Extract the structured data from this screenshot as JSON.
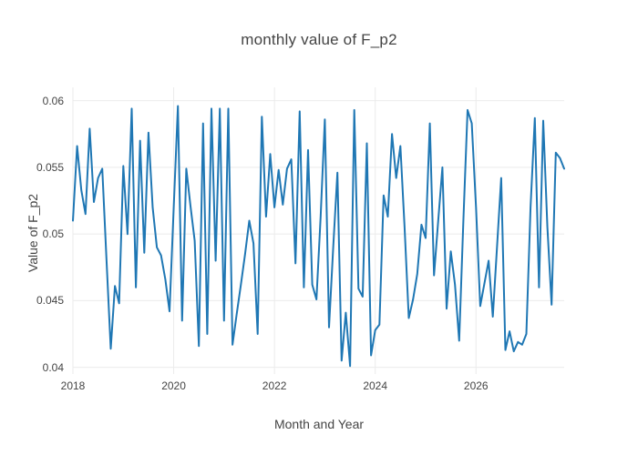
{
  "chart_data": {
    "type": "line",
    "title": "monthly value of F_p2",
    "xlabel": "Month and Year",
    "ylabel": "Value of F_p2",
    "legend": false,
    "grid": true,
    "background": "#ffffff",
    "grid_color": "#ebebeb",
    "ylim": [
      0.0395,
      0.061
    ],
    "x_range": [
      "2018-01",
      "2027-10"
    ],
    "yticks": [
      {
        "value": 0.04,
        "label": "0.04"
      },
      {
        "value": 0.045,
        "label": "0.045"
      },
      {
        "value": 0.05,
        "label": "0.05"
      },
      {
        "value": 0.055,
        "label": "0.055"
      },
      {
        "value": 0.06,
        "label": "0.06"
      }
    ],
    "xticks": [
      {
        "month_index": 0,
        "label": "2018"
      },
      {
        "month_index": 24,
        "label": "2020"
      },
      {
        "month_index": 48,
        "label": "2022"
      },
      {
        "month_index": 72,
        "label": "2024"
      },
      {
        "month_index": 96,
        "label": "2026"
      }
    ],
    "x": [
      "2018-01",
      "2018-02",
      "2018-03",
      "2018-04",
      "2018-05",
      "2018-06",
      "2018-07",
      "2018-08",
      "2018-09",
      "2018-10",
      "2018-11",
      "2018-12",
      "2019-01",
      "2019-02",
      "2019-03",
      "2019-04",
      "2019-05",
      "2019-06",
      "2019-07",
      "2019-08",
      "2019-09",
      "2019-10",
      "2019-11",
      "2019-12",
      "2020-01",
      "2020-02",
      "2020-03",
      "2020-04",
      "2020-05",
      "2020-06",
      "2020-07",
      "2020-08",
      "2020-09",
      "2020-10",
      "2020-11",
      "2020-12",
      "2021-01",
      "2021-02",
      "2021-03",
      "2021-04",
      "2021-05",
      "2021-06",
      "2021-07",
      "2021-08",
      "2021-09",
      "2021-10",
      "2021-11",
      "2021-12",
      "2022-01",
      "2022-02",
      "2022-03",
      "2022-04",
      "2022-05",
      "2022-06",
      "2022-07",
      "2022-08",
      "2022-09",
      "2022-10",
      "2022-11",
      "2022-12",
      "2023-01",
      "2023-02",
      "2023-03",
      "2023-04",
      "2023-05",
      "2023-06",
      "2023-07",
      "2023-08",
      "2023-09",
      "2023-10",
      "2023-11",
      "2023-12",
      "2024-01",
      "2024-02",
      "2024-03",
      "2024-04",
      "2024-05",
      "2024-06",
      "2024-07",
      "2024-08",
      "2024-09",
      "2024-10",
      "2024-11",
      "2024-12",
      "2025-01",
      "2025-02",
      "2025-03",
      "2025-04",
      "2025-05",
      "2025-06",
      "2025-07",
      "2025-08",
      "2025-09",
      "2025-10",
      "2025-11",
      "2025-12",
      "2026-01",
      "2026-02",
      "2026-03",
      "2026-04",
      "2026-05",
      "2026-06",
      "2026-07",
      "2026-08",
      "2026-09",
      "2026-10",
      "2026-11",
      "2026-12",
      "2027-01",
      "2027-02",
      "2027-03",
      "2027-04",
      "2027-05",
      "2027-06",
      "2027-07",
      "2027-08",
      "2027-09",
      "2027-10"
    ],
    "series": [
      {
        "name": "F_p2",
        "color": "#1f77b4",
        "values": [
          0.051,
          0.0566,
          0.0533,
          0.0515,
          0.0579,
          0.0524,
          0.0542,
          0.0549,
          0.048,
          0.0414,
          0.0461,
          0.0448,
          0.0551,
          0.05,
          0.0594,
          0.046,
          0.057,
          0.0486,
          0.0576,
          0.052,
          0.049,
          0.0484,
          0.0466,
          0.0442,
          0.052,
          0.0596,
          0.0435,
          0.0549,
          0.0521,
          0.0495,
          0.0416,
          0.0583,
          0.0425,
          0.0594,
          0.048,
          0.0594,
          0.0435,
          0.0594,
          0.0417,
          0.044,
          0.0462,
          0.0485,
          0.051,
          0.0493,
          0.0425,
          0.0588,
          0.0513,
          0.056,
          0.052,
          0.0548,
          0.0522,
          0.0549,
          0.0556,
          0.0478,
          0.0592,
          0.046,
          0.0563,
          0.0462,
          0.0451,
          0.0513,
          0.0586,
          0.043,
          0.049,
          0.0546,
          0.0405,
          0.0441,
          0.0401,
          0.0593,
          0.0459,
          0.0453,
          0.0568,
          0.0409,
          0.0428,
          0.0432,
          0.0529,
          0.0513,
          0.0575,
          0.0542,
          0.0566,
          0.0505,
          0.0437,
          0.0451,
          0.047,
          0.0507,
          0.0497,
          0.0583,
          0.0469,
          0.051,
          0.055,
          0.0444,
          0.0487,
          0.0462,
          0.042,
          0.051,
          0.0593,
          0.0583,
          0.052,
          0.0446,
          0.0463,
          0.048,
          0.0438,
          0.049,
          0.0542,
          0.0413,
          0.0427,
          0.0412,
          0.0419,
          0.0417,
          0.0425,
          0.052,
          0.0587,
          0.046,
          0.0585,
          0.0505,
          0.0447,
          0.0561,
          0.0557,
          0.0549
        ]
      }
    ]
  }
}
